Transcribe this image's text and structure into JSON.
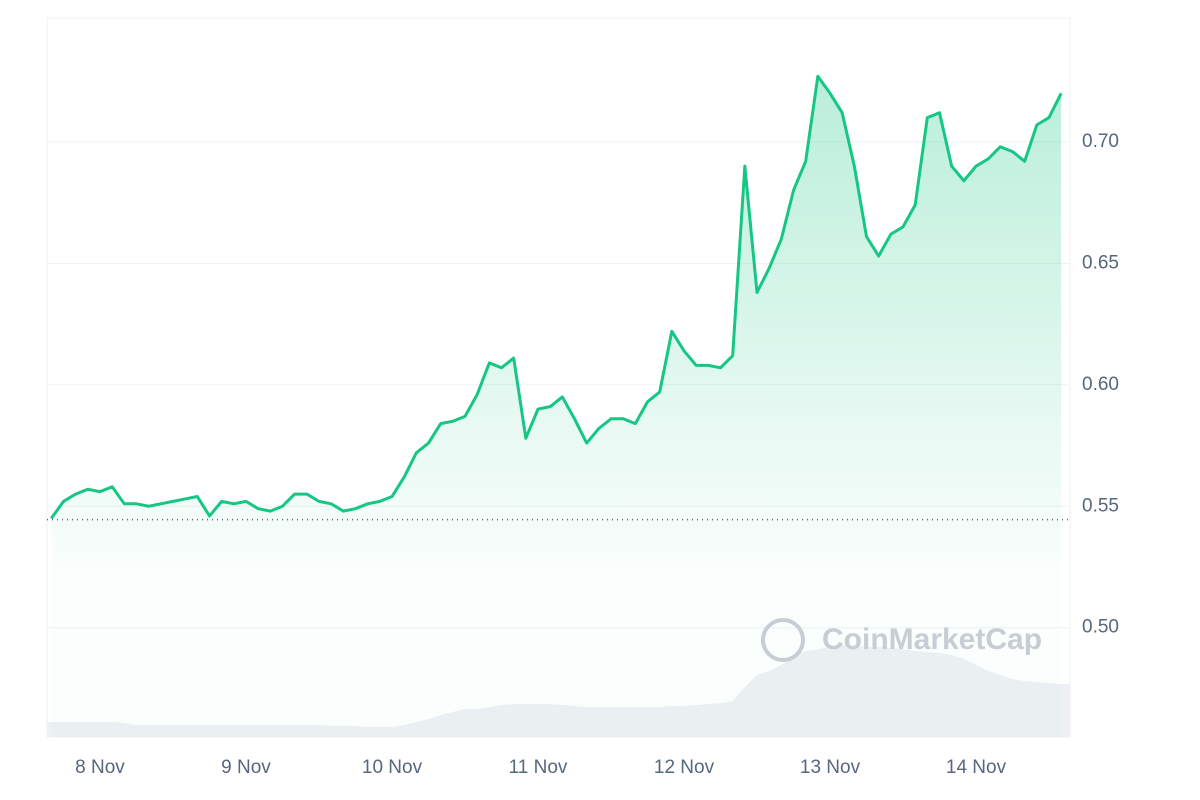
{
  "chart_data": {
    "type": "line",
    "watermark": "CoinMarketCap",
    "categories": [
      null,
      null,
      null,
      null,
      "8 Nov",
      null,
      null,
      null,
      null,
      null,
      null,
      null,
      null,
      null,
      null,
      null,
      "9 Nov",
      null,
      null,
      null,
      null,
      null,
      null,
      null,
      null,
      null,
      null,
      null,
      "10 Nov",
      null,
      null,
      null,
      null,
      null,
      null,
      null,
      null,
      null,
      null,
      null,
      "11 Nov",
      null,
      null,
      null,
      null,
      null,
      null,
      null,
      null,
      null,
      null,
      null,
      "12 Nov",
      null,
      null,
      null,
      null,
      null,
      null,
      null,
      null,
      null,
      null,
      null,
      "13 Nov",
      null,
      null,
      null,
      null,
      null,
      null,
      null,
      null,
      null,
      null,
      null,
      "14 Nov",
      null,
      null,
      null,
      null,
      null,
      null,
      null
    ],
    "series": [
      {
        "color": "#16c784",
        "values": [
          0.545,
          0.552,
          0.555,
          0.557,
          0.556,
          0.558,
          0.551,
          0.551,
          0.55,
          0.551,
          0.552,
          0.553,
          0.554,
          0.546,
          0.552,
          0.551,
          0.552,
          0.549,
          0.548,
          0.55,
          0.555,
          0.555,
          0.552,
          0.551,
          0.548,
          0.549,
          0.551,
          0.552,
          0.554,
          0.562,
          0.572,
          0.576,
          0.584,
          0.585,
          0.587,
          0.596,
          0.609,
          0.607,
          0.611,
          0.578,
          0.59,
          0.591,
          0.595,
          0.586,
          0.576,
          0.582,
          0.586,
          0.586,
          0.584,
          0.593,
          0.597,
          0.622,
          0.614,
          0.608,
          0.608,
          0.607,
          0.612,
          0.69,
          0.638,
          0.648,
          0.66,
          0.68,
          0.692,
          0.727,
          0.72,
          0.712,
          0.69,
          0.661,
          0.653,
          0.662,
          0.665,
          0.674,
          0.71,
          0.712,
          0.69,
          0.684,
          0.69,
          0.693,
          0.698,
          0.696,
          0.692,
          0.707,
          0.71,
          0.72
        ]
      }
    ],
    "volume": {
      "color": "#eef0f3",
      "ylim": [
        0,
        150
      ],
      "values": [
        15,
        15,
        15,
        15,
        15,
        15,
        14,
        12,
        12,
        12,
        12,
        12,
        12,
        12,
        12,
        12,
        12,
        12,
        12,
        12,
        12,
        12,
        12,
        11,
        11,
        11,
        10,
        10,
        10,
        12,
        15,
        18,
        22,
        25,
        28,
        28,
        30,
        32,
        33,
        33,
        33,
        33,
        32,
        31,
        30,
        30,
        30,
        30,
        30,
        30,
        30,
        31,
        31,
        32,
        33,
        34,
        36,
        50,
        62,
        66,
        72,
        80,
        86,
        88,
        90,
        92,
        92,
        90,
        90,
        89,
        88,
        86,
        85,
        84,
        82,
        78,
        72,
        66,
        62,
        58,
        56,
        55,
        54,
        53
      ]
    },
    "reference": 0.5445,
    "ylim": [
      0.455,
      0.751
    ],
    "yticks": [
      {
        "value": 0.5,
        "label": "0.50"
      },
      0.55,
      {
        "value": 0.6,
        "label": "0.60"
      },
      0.65,
      {
        "value": 0.7,
        "label": "0.70"
      }
    ],
    "grid": true
  }
}
